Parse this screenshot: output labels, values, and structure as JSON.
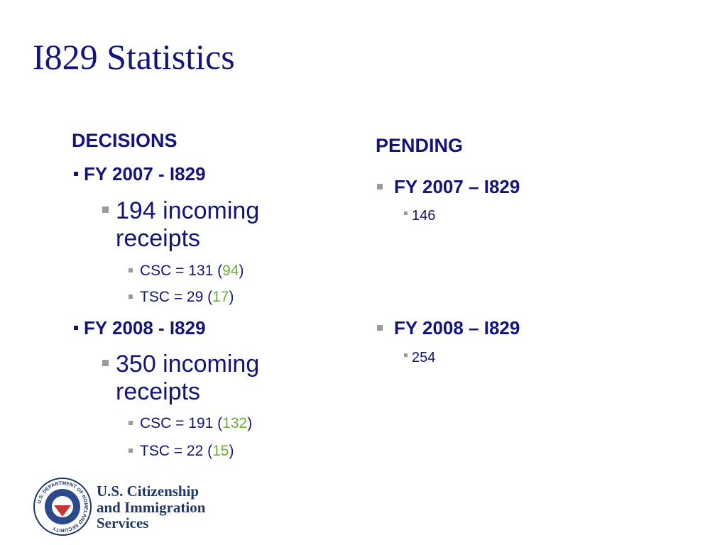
{
  "title": "I829 Statistics",
  "decisions": {
    "heading": "DECISIONS",
    "groups": [
      {
        "label": "FY 2007 - I829",
        "receipts": "194 incoming receipts",
        "centers": [
          {
            "text": "CSC = 131 (",
            "highlight": "94",
            "close": ")"
          },
          {
            "text": "TSC = 29 (",
            "highlight": "17",
            "close": ")"
          }
        ]
      },
      {
        "label": "FY 2008 - I829",
        "receipts": "350 incoming receipts",
        "centers": [
          {
            "text": "CSC = 191 (",
            "highlight": "132",
            "close": ")"
          },
          {
            "text": "TSC = 22 (",
            "highlight": "15",
            "close": ")"
          }
        ]
      }
    ]
  },
  "pending": {
    "heading": "PENDING",
    "groups": [
      {
        "label": "FY 2007 – I829",
        "count": "146"
      },
      {
        "label": "FY 2008 – I829",
        "count": "254"
      }
    ]
  },
  "logo": {
    "seal_text": "U.S. DEPARTMENT OF HOMELAND SECURITY",
    "lines": [
      "U.S. Citizenship",
      "and Immigration",
      "Services"
    ]
  }
}
